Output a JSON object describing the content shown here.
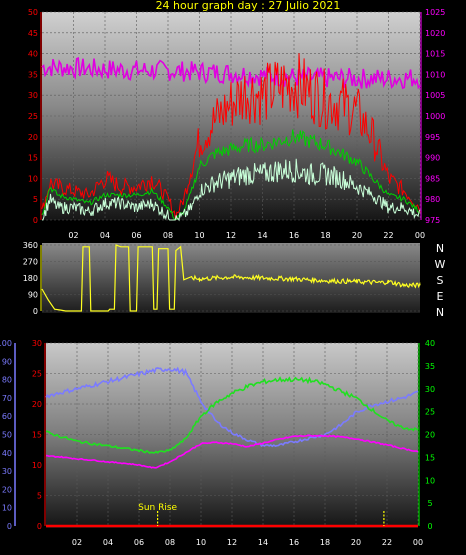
{
  "title": "24 hour graph day : 27 Julio 2021",
  "colors": {
    "wind_gust": "#ff0000",
    "wind_avg": "#00d000",
    "wind_speed": "#c8ffd8",
    "pressure": "#e000e0",
    "direction": "#ffff20",
    "humidity": "#7b7bff",
    "temperature": "#ff00ff",
    "solar": "#20e020",
    "rain": "#ff0000",
    "sun_marker": "#ffff00",
    "left_axis": "#ff0000",
    "right_axis_pressure": "#ff00ff",
    "right_axis_solar": "#00ff00",
    "humidity_axis": "#7b7bff",
    "x_axis": "#ffffff",
    "compass_letters": "#ffffff"
  },
  "compass": [
    "N",
    "W",
    "S",
    "E",
    "N"
  ],
  "sunrise_label": "Sun Rise",
  "chart_data": [
    {
      "id": "wind",
      "type": "line",
      "x_ticks": [
        "02",
        "04",
        "06",
        "08",
        "10",
        "12",
        "14",
        "16",
        "18",
        "20",
        "22",
        "00"
      ],
      "xlim": [
        0,
        24
      ],
      "ylim": [
        0,
        50
      ],
      "y_ticks": [
        "0",
        "5",
        "10",
        "15",
        "20",
        "25",
        "30",
        "35",
        "40",
        "45",
        "50"
      ],
      "y2lim": [
        975,
        1025
      ],
      "y2_ticks": [
        "975",
        "980",
        "985",
        "990",
        "995",
        "1000",
        "1005",
        "1010",
        "1015",
        "1020",
        "1025"
      ],
      "grid": true,
      "series": [
        {
          "key": "pressure",
          "axis": "y2",
          "x": [
            0,
            2,
            4,
            6,
            8,
            10,
            12,
            14,
            16,
            18,
            20,
            22,
            24
          ],
          "y": [
            1011.8,
            1011.6,
            1011.2,
            1011.0,
            1010.9,
            1010.6,
            1010.3,
            1009.7,
            1009.3,
            1009.1,
            1009.0,
            1009.0,
            1009.2
          ]
        },
        {
          "key": "wind_gust",
          "axis": "y",
          "x": [
            0,
            0.5,
            1,
            2,
            3,
            4,
            5,
            6,
            7,
            8,
            8.5,
            9,
            9.5,
            10,
            11,
            12,
            13,
            14,
            15,
            16,
            17,
            18,
            19,
            20,
            21,
            22,
            23,
            24
          ],
          "y": [
            2,
            9,
            8,
            7,
            6,
            10,
            8,
            8,
            10,
            5,
            1,
            5,
            13,
            19,
            24,
            28,
            31,
            30,
            32,
            33,
            31,
            29,
            28,
            26,
            20,
            10,
            7,
            3
          ]
        },
        {
          "key": "wind_avg",
          "axis": "y",
          "x": [
            0,
            0.5,
            1,
            2,
            3,
            4,
            5,
            6,
            7,
            8,
            8.5,
            9,
            9.5,
            10,
            11,
            12,
            13,
            14,
            15,
            16,
            17,
            18,
            19,
            20,
            21,
            22,
            23,
            24
          ],
          "y": [
            1,
            8,
            6,
            5,
            4,
            6,
            6,
            6,
            7,
            3,
            0,
            2,
            7,
            13,
            16,
            17,
            18,
            18,
            19,
            20,
            19,
            18,
            16,
            14,
            10,
            6,
            5,
            2
          ]
        },
        {
          "key": "wind_speed",
          "axis": "y",
          "x": [
            0,
            0.5,
            1,
            2,
            3,
            4,
            5,
            6,
            7,
            8,
            8.5,
            9,
            9.5,
            10,
            11,
            12,
            13,
            14,
            15,
            16,
            17,
            18,
            19,
            20,
            21,
            22,
            23,
            24
          ],
          "y": [
            0,
            5,
            3,
            3,
            2,
            4,
            4,
            3,
            4,
            1,
            0,
            1,
            3,
            7,
            9,
            10,
            11,
            11,
            12,
            12,
            11,
            11,
            10,
            8,
            6,
            3,
            3,
            1
          ]
        }
      ]
    },
    {
      "id": "direction",
      "type": "line",
      "xlim": [
        0,
        24
      ],
      "ylim": [
        0,
        360
      ],
      "y_ticks": [
        "0",
        "90",
        "180",
        "270",
        "360"
      ],
      "series": [
        {
          "key": "direction",
          "x": [
            0,
            0.4,
            0.8,
            1.2,
            1.5,
            2.0,
            2.5,
            2.6,
            3.0,
            3.1,
            4.2,
            4.3,
            4.6,
            4.7,
            5.0,
            5.5,
            5.6,
            6.0,
            6.1,
            7.0,
            7.1,
            7.3,
            7.4,
            8.0,
            8.1,
            8.4,
            8.5,
            8.8,
            9.0,
            9.5,
            10,
            12,
            14,
            16,
            18,
            20,
            21.5,
            22,
            23,
            23.5,
            24
          ],
          "y": [
            120,
            60,
            10,
            5,
            0,
            0,
            0,
            350,
            350,
            0,
            0,
            10,
            10,
            360,
            350,
            350,
            0,
            0,
            350,
            350,
            10,
            10,
            340,
            340,
            10,
            10,
            330,
            350,
            170,
            180,
            175,
            185,
            180,
            175,
            165,
            160,
            155,
            160,
            140,
            140,
            140
          ]
        }
      ]
    },
    {
      "id": "climate",
      "type": "line",
      "x_ticks": [
        "02",
        "04",
        "06",
        "08",
        "10",
        "12",
        "14",
        "16",
        "18",
        "20",
        "22",
        "00"
      ],
      "xlim": [
        0,
        24
      ],
      "ylim": [
        0,
        30
      ],
      "y_ticks": [
        "0",
        "5",
        "10",
        "15",
        "20",
        "25",
        "30"
      ],
      "humidity_lim": [
        0,
        100
      ],
      "humidity_ticks": [
        "0",
        "10",
        "20",
        "30",
        "40",
        "50",
        "60",
        "70",
        "80",
        "90",
        "100"
      ],
      "y2lim": [
        0,
        40
      ],
      "y2_ticks": [
        "0",
        "5",
        "10",
        "15",
        "20",
        "25",
        "30",
        "35",
        "40"
      ],
      "grid": true,
      "series": [
        {
          "key": "humidity",
          "axis": "humidity",
          "x": [
            0,
            2,
            4,
            6,
            7,
            8,
            9,
            10,
            11,
            12,
            13,
            14,
            15,
            16,
            17,
            18,
            19,
            20,
            21,
            22,
            23,
            24
          ],
          "y": [
            71,
            75,
            79,
            83,
            85,
            86,
            84,
            68,
            57,
            51,
            47,
            44,
            44,
            46,
            48,
            50,
            55,
            62,
            66,
            68,
            70,
            73
          ]
        },
        {
          "key": "temperature",
          "axis": "y",
          "x": [
            0,
            1,
            2,
            3,
            4,
            5,
            6,
            7,
            8,
            9,
            10,
            11,
            12,
            13,
            14,
            15,
            16,
            17,
            18,
            19,
            20,
            21,
            22,
            23,
            24
          ],
          "y": [
            11.5,
            11.3,
            11.0,
            10.8,
            10.5,
            10.3,
            10.0,
            9.5,
            10.5,
            12.0,
            13.5,
            13.7,
            13.5,
            13.0,
            13.6,
            14.2,
            14.7,
            14.8,
            14.8,
            14.6,
            14.3,
            13.8,
            13.3,
            12.7,
            12.2
          ]
        },
        {
          "key": "solar",
          "axis": "y2",
          "x": [
            0,
            2,
            4,
            6,
            7,
            8,
            9,
            10,
            11,
            12,
            13,
            14,
            15,
            16,
            17,
            18,
            19,
            20,
            21,
            22,
            23,
            24
          ],
          "y": [
            20.5,
            18.5,
            17.5,
            16.5,
            16.0,
            16.5,
            19.0,
            24.0,
            27.0,
            29.0,
            30.5,
            31.5,
            32.0,
            32.0,
            31.8,
            31.0,
            29.5,
            28.0,
            25.5,
            23.0,
            21.5,
            21.0
          ]
        },
        {
          "key": "rain",
          "axis": "y",
          "x": [
            0,
            24
          ],
          "y": [
            0,
            0
          ]
        }
      ],
      "sunrise_hour": 7.2,
      "sunset_hour": 21.8
    }
  ]
}
